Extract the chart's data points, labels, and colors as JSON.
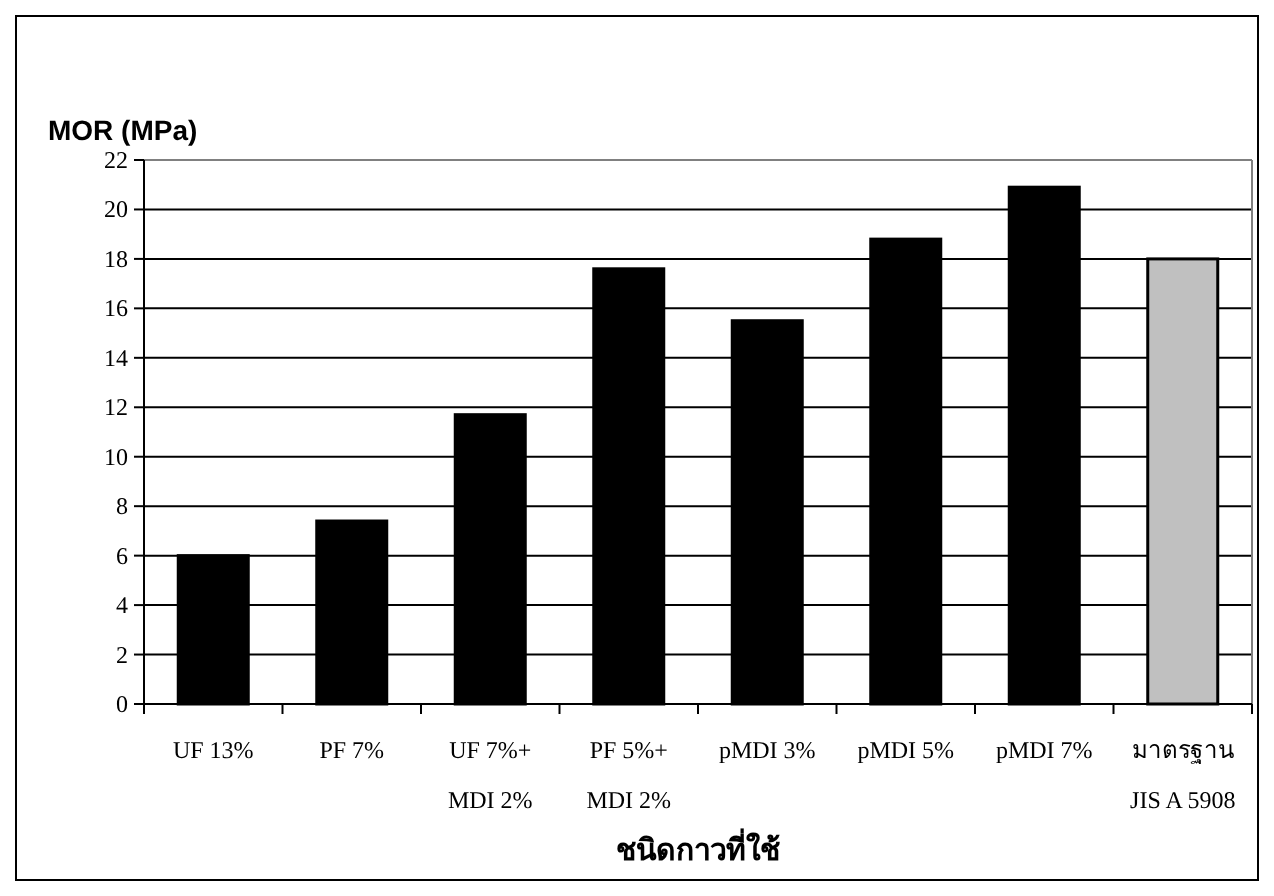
{
  "chart_data": {
    "type": "bar",
    "categories": [
      "UF 13%",
      "PF 7%",
      "UF 7%+\nMDI 2%",
      "PF 5%+\nMDI 2%",
      "pMDI 3%",
      "pMDI 5%",
      "pMDI 7%",
      "มาตรฐาน\nJIS A 5908"
    ],
    "values": [
      6.0,
      7.4,
      11.7,
      17.6,
      15.5,
      18.8,
      20.9,
      18.0
    ],
    "colors": [
      "#000000",
      "#000000",
      "#000000",
      "#000000",
      "#000000",
      "#000000",
      "#000000",
      "#c0c0c0"
    ],
    "ylim": [
      0,
      22
    ],
    "yticks": [
      0,
      2,
      4,
      6,
      8,
      10,
      12,
      14,
      16,
      18,
      20,
      22
    ],
    "grid": "y",
    "ylabel": "MOR (MPa)",
    "xlabel": "ชนิดกาวที่ใช้"
  }
}
